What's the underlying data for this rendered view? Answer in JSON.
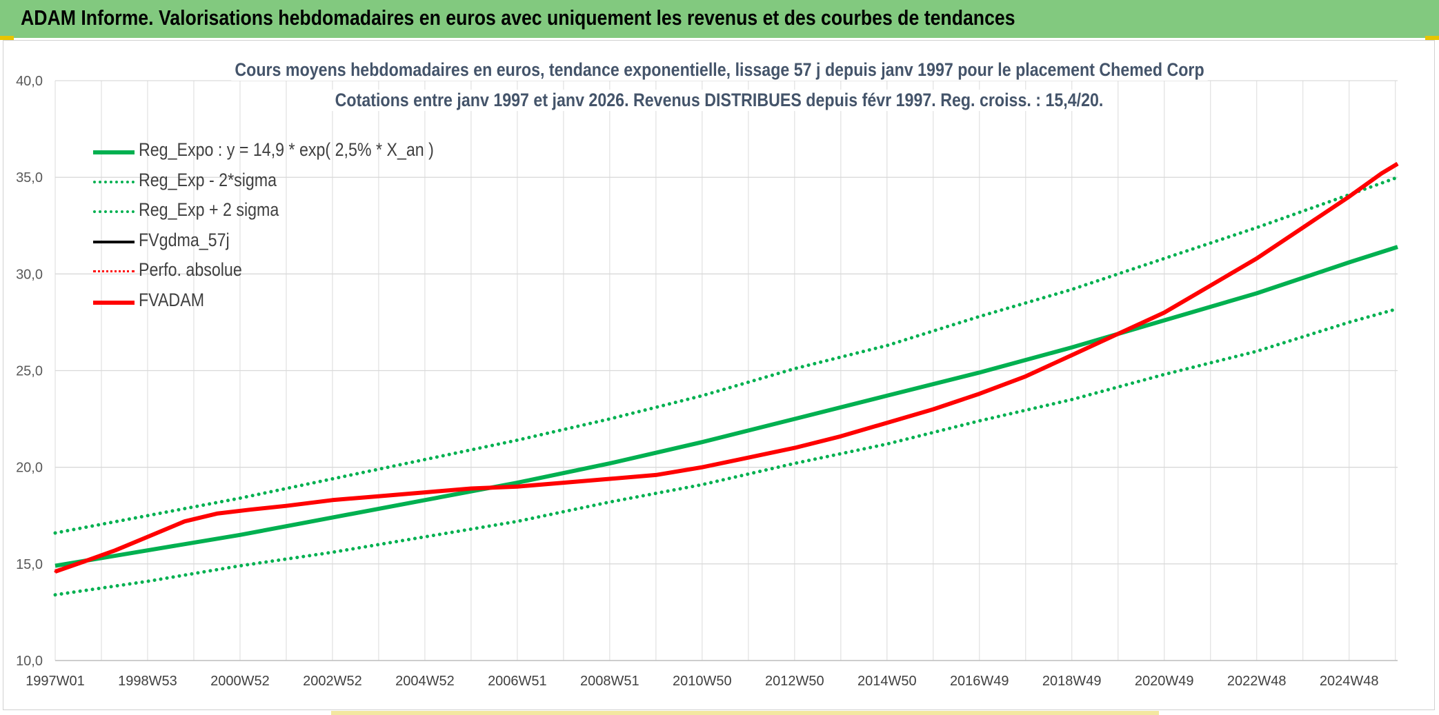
{
  "banner": {
    "title": "ADAM Informe. Valorisations hebdomadaires en euros avec uniquement les revenus et des courbes de tendances"
  },
  "colors": {
    "banner_bg": "#82c97f",
    "green": "#00b050",
    "red": "#ff0000",
    "black": "#000000",
    "grid": "#d9d9d9"
  },
  "chart_data": {
    "type": "line",
    "title": "Cours moyens hebdomadaires en euros, tendance exponentielle, lissage 57 j depuis janv 1997 pour le placement Chemed Corp",
    "subtitle": "Cotations entre janv 1997 et janv 2026. Revenus DISTRIBUES depuis févr 1997. Reg. croiss. : 15,4/20.",
    "xlabel": "",
    "ylabel": "",
    "ylim": [
      10,
      40
    ],
    "yticks": [
      "10,0",
      "15,0",
      "20,0",
      "25,0",
      "30,0",
      "35,0",
      "40,0"
    ],
    "xlim": [
      1997.0,
      2026.05
    ],
    "xticks": [
      {
        "label": "1997W01",
        "x": 1997.0
      },
      {
        "label": "1998W53",
        "x": 1999.0
      },
      {
        "label": "2000W52",
        "x": 2001.0
      },
      {
        "label": "2002W52",
        "x": 2003.0
      },
      {
        "label": "2004W52",
        "x": 2005.0
      },
      {
        "label": "2006W51",
        "x": 2007.0
      },
      {
        "label": "2008W51",
        "x": 2009.0
      },
      {
        "label": "2010W50",
        "x": 2011.0
      },
      {
        "label": "2012W50",
        "x": 2013.0
      },
      {
        "label": "2014W50",
        "x": 2015.0
      },
      {
        "label": "2016W49",
        "x": 2017.0
      },
      {
        "label": "2018W49",
        "x": 2019.0
      },
      {
        "label": "2020W49",
        "x": 2021.0
      },
      {
        "label": "2022W48",
        "x": 2023.0
      },
      {
        "label": "2024W48",
        "x": 2025.0
      }
    ],
    "grid": true,
    "legend_position": "top-left",
    "series": [
      {
        "name": "Reg_Expo : y = 14,9 * exp( 2,5% *  X_an )",
        "color": "#00b050",
        "style": "solid",
        "width": 6,
        "x": [
          1997,
          1999,
          2001,
          2003,
          2005,
          2007,
          2009,
          2011,
          2013,
          2015,
          2017,
          2019,
          2021,
          2023,
          2025,
          2026.05
        ],
        "y": [
          14.9,
          15.7,
          16.5,
          17.4,
          18.3,
          19.2,
          20.2,
          21.3,
          22.5,
          23.7,
          24.9,
          26.2,
          27.6,
          29.0,
          30.6,
          31.4
        ]
      },
      {
        "name": "Reg_Exp - 2*sigma",
        "color": "#00b050",
        "style": "dotted",
        "width": 5,
        "x": [
          1997,
          1999,
          2001,
          2003,
          2005,
          2007,
          2009,
          2011,
          2013,
          2015,
          2017,
          2019,
          2021,
          2023,
          2025,
          2026.05
        ],
        "y": [
          13.4,
          14.1,
          14.9,
          15.6,
          16.4,
          17.2,
          18.2,
          19.1,
          20.2,
          21.2,
          22.4,
          23.5,
          24.8,
          26.0,
          27.5,
          28.2
        ]
      },
      {
        "name": "Reg_Exp + 2 sigma",
        "color": "#00b050",
        "style": "dotted",
        "width": 5,
        "x": [
          1997,
          1999,
          2001,
          2003,
          2005,
          2007,
          2009,
          2011,
          2013,
          2015,
          2017,
          2019,
          2021,
          2023,
          2025,
          2026.05
        ],
        "y": [
          16.6,
          17.5,
          18.4,
          19.4,
          20.4,
          21.4,
          22.5,
          23.7,
          25.1,
          26.3,
          27.8,
          29.2,
          30.8,
          32.4,
          34.1,
          35.0
        ]
      },
      {
        "name": "FVgdma_57j",
        "color": "#000000",
        "style": "solid",
        "width": 4,
        "x": [
          1997,
          1997.6,
          1998.3,
          1999,
          1999.8,
          2000.5,
          2001.2,
          2002,
          2003,
          2004,
          2005,
          2006,
          2007,
          2008,
          2009,
          2010,
          2011,
          2012,
          2013,
          2014,
          2015,
          2016,
          2017,
          2018,
          2019,
          2020,
          2021,
          2022,
          2023,
          2024,
          2025,
          2025.7,
          2026.05
        ],
        "y": [
          14.6,
          15.1,
          15.7,
          16.4,
          17.2,
          17.6,
          17.8,
          18.0,
          18.3,
          18.5,
          18.7,
          18.9,
          19.0,
          19.2,
          19.4,
          19.6,
          20.0,
          20.5,
          21.0,
          21.6,
          22.3,
          23.0,
          23.8,
          24.7,
          25.8,
          26.9,
          28.0,
          29.4,
          30.8,
          32.4,
          34.0,
          35.2,
          35.7
        ]
      },
      {
        "name": "Perfo. absolue",
        "color": "#ff0000",
        "style": "dotted",
        "width": 3,
        "x": [
          1997,
          1997.6,
          1998.3,
          1999,
          1999.8,
          2000.5,
          2001.2,
          2002,
          2003,
          2004,
          2005,
          2006,
          2007,
          2008,
          2009,
          2010,
          2011,
          2012,
          2013,
          2014,
          2015,
          2016,
          2017,
          2018,
          2019,
          2020,
          2021,
          2022,
          2023,
          2024,
          2025,
          2025.7,
          2026.05
        ],
        "y": [
          14.6,
          15.1,
          15.7,
          16.4,
          17.2,
          17.6,
          17.8,
          18.0,
          18.3,
          18.5,
          18.7,
          18.9,
          19.0,
          19.2,
          19.4,
          19.6,
          20.0,
          20.5,
          21.0,
          21.6,
          22.3,
          23.0,
          23.8,
          24.7,
          25.8,
          26.9,
          28.0,
          29.4,
          30.8,
          32.4,
          34.0,
          35.2,
          35.7
        ]
      },
      {
        "name": "FVADAM",
        "color": "#ff0000",
        "style": "solid",
        "width": 6,
        "x": [
          1997,
          1997.6,
          1998.3,
          1999,
          1999.8,
          2000.5,
          2001.2,
          2002,
          2003,
          2004,
          2005,
          2006,
          2007,
          2008,
          2009,
          2010,
          2011,
          2012,
          2013,
          2014,
          2015,
          2016,
          2017,
          2018,
          2019,
          2020,
          2021,
          2022,
          2023,
          2024,
          2025,
          2025.7,
          2026.05
        ],
        "y": [
          14.6,
          15.1,
          15.7,
          16.4,
          17.2,
          17.6,
          17.8,
          18.0,
          18.3,
          18.5,
          18.7,
          18.9,
          19.0,
          19.2,
          19.4,
          19.6,
          20.0,
          20.5,
          21.0,
          21.6,
          22.3,
          23.0,
          23.8,
          24.7,
          25.8,
          26.9,
          28.0,
          29.4,
          30.8,
          32.4,
          34.0,
          35.2,
          35.7
        ]
      }
    ]
  }
}
